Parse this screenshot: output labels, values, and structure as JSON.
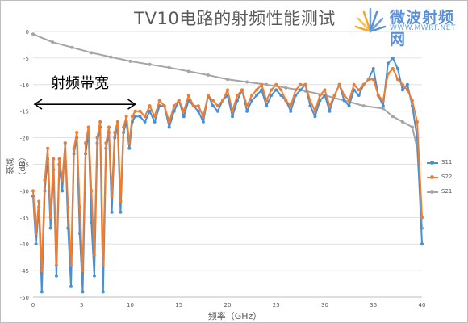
{
  "title": "TV10电路的射频性能测试",
  "logo": {
    "name": "微波射频网",
    "url": "WWW.MWRF.NET"
  },
  "annotation": {
    "label": "射频带宽",
    "from_ghz": 0,
    "to_ghz": 10.5,
    "y_db": -13.7
  },
  "chart_data": {
    "type": "line",
    "title": "TV10电路的射频性能测试",
    "xlabel": "频率（GHz）",
    "ylabel": "衰减（dB）",
    "xlim": [
      0,
      40
    ],
    "ylim": [
      -50,
      0
    ],
    "xticks": [
      0,
      5,
      10,
      15,
      20,
      25,
      30,
      35,
      40
    ],
    "yticks": [
      0,
      -5,
      -10,
      -15,
      -20,
      -25,
      -30,
      -35,
      -40,
      -45,
      -50
    ],
    "legend_position": "right",
    "grid": "horizontal",
    "series": [
      {
        "name": "S11",
        "color": "#4a8fd4",
        "x": [
          0,
          0.3,
          0.6,
          0.9,
          1.2,
          1.5,
          1.8,
          2.1,
          2.4,
          2.7,
          3,
          3.3,
          3.6,
          3.9,
          4.2,
          4.5,
          4.8,
          5.1,
          5.4,
          5.7,
          6,
          6.3,
          6.6,
          6.9,
          7.2,
          7.5,
          7.8,
          8.1,
          8.4,
          8.7,
          9,
          9.3,
          9.6,
          9.9,
          10.2,
          10.5,
          11,
          11.5,
          12,
          12.5,
          13,
          13.5,
          14,
          14.5,
          15,
          15.5,
          16,
          16.5,
          17,
          17.5,
          18,
          18.5,
          19,
          19.5,
          20,
          20.5,
          21,
          21.5,
          22,
          22.5,
          23,
          23.5,
          24,
          24.5,
          25,
          25.5,
          26,
          26.5,
          27,
          27.5,
          28,
          28.5,
          29,
          29.5,
          30,
          30.5,
          31,
          31.5,
          32,
          32.5,
          33,
          33.5,
          34,
          34.5,
          35,
          35.5,
          36,
          36.5,
          37,
          37.5,
          38,
          38.5,
          39,
          39.5,
          40
        ],
        "values": [
          -31,
          -40,
          -33,
          -49,
          -30,
          -24,
          -37,
          -26,
          -46,
          -25,
          -30,
          -21,
          -37,
          -48,
          -23,
          -20,
          -38,
          -49,
          -23,
          -19,
          -36,
          -46,
          -21,
          -18,
          -49,
          -22,
          -19,
          -34,
          -20,
          -18,
          -34,
          -19,
          -17,
          -22,
          -17,
          -16,
          -16,
          -17,
          -15,
          -17,
          -14,
          -14,
          -18,
          -15,
          -13,
          -16,
          -13,
          -14,
          -15,
          -17,
          -12,
          -14,
          -15,
          -13,
          -12,
          -16,
          -13,
          -11,
          -15,
          -13,
          -12,
          -11,
          -14,
          -12,
          -11,
          -12,
          -13,
          -15,
          -12,
          -11,
          -10,
          -14,
          -16,
          -13,
          -12,
          -15,
          -12,
          -10,
          -13,
          -14,
          -11,
          -12,
          -10,
          -9,
          -7,
          -12,
          -14,
          -6,
          -5,
          -7,
          -11,
          -10,
          -14,
          -20,
          -40
        ]
      },
      {
        "name": "S22",
        "color": "#ed7d31",
        "x": [
          0,
          0.3,
          0.6,
          0.9,
          1.2,
          1.5,
          1.8,
          2.1,
          2.4,
          2.7,
          3,
          3.3,
          3.6,
          3.9,
          4.2,
          4.5,
          4.8,
          5.1,
          5.4,
          5.7,
          6,
          6.3,
          6.6,
          6.9,
          7.2,
          7.5,
          7.8,
          8.1,
          8.4,
          8.7,
          9,
          9.3,
          9.6,
          9.9,
          10.2,
          10.5,
          11,
          11.5,
          12,
          12.5,
          13,
          13.5,
          14,
          14.5,
          15,
          15.5,
          16,
          16.5,
          17,
          17.5,
          18,
          18.5,
          19,
          19.5,
          20,
          20.5,
          21,
          21.5,
          22,
          22.5,
          23,
          23.5,
          24,
          24.5,
          25,
          25.5,
          26,
          26.5,
          27,
          27.5,
          28,
          28.5,
          29,
          29.5,
          30,
          30.5,
          31,
          31.5,
          32,
          32.5,
          33,
          33.5,
          34,
          34.5,
          35,
          35.5,
          36,
          36.5,
          37,
          37.5,
          38,
          38.5,
          39,
          39.5,
          40
        ],
        "values": [
          -30,
          -38,
          -32,
          -45,
          -28,
          -22,
          -35,
          -24,
          -44,
          -24,
          -28,
          -21,
          -33,
          -44,
          -22,
          -19,
          -33,
          -45,
          -21,
          -18,
          -30,
          -42,
          -20,
          -17,
          -44,
          -21,
          -18,
          -31,
          -19,
          -17,
          -32,
          -18,
          -16,
          -21,
          -16,
          -15,
          -15,
          -16,
          -14,
          -16,
          -13,
          -14,
          -17,
          -14,
          -13,
          -15,
          -12,
          -14,
          -14,
          -16,
          -12,
          -13,
          -14,
          -13,
          -11,
          -15,
          -12,
          -11,
          -14,
          -12,
          -11,
          -10,
          -13,
          -11,
          -10,
          -11,
          -13,
          -14,
          -11,
          -10,
          -10,
          -13,
          -15,
          -12,
          -11,
          -14,
          -12,
          -10,
          -12,
          -13,
          -10,
          -11,
          -10,
          -9,
          -9,
          -12,
          -13,
          -8,
          -7,
          -9,
          -10,
          -11,
          -13,
          -17,
          -35
        ]
      },
      {
        "name": "S21",
        "color": "#a5a5a5",
        "x": [
          0,
          2,
          4,
          6,
          8,
          10,
          12,
          14,
          16,
          18,
          20,
          22,
          24,
          26,
          28,
          30,
          32,
          34,
          36,
          37,
          38,
          39,
          39.5,
          40
        ],
        "values": [
          -0.5,
          -2,
          -3,
          -4,
          -4.8,
          -5.6,
          -6.2,
          -6.8,
          -7.5,
          -8.2,
          -9,
          -9.5,
          -10,
          -10.6,
          -11.2,
          -12,
          -13,
          -14,
          -14.5,
          -16,
          -17,
          -18,
          -22,
          -37
        ]
      }
    ]
  }
}
